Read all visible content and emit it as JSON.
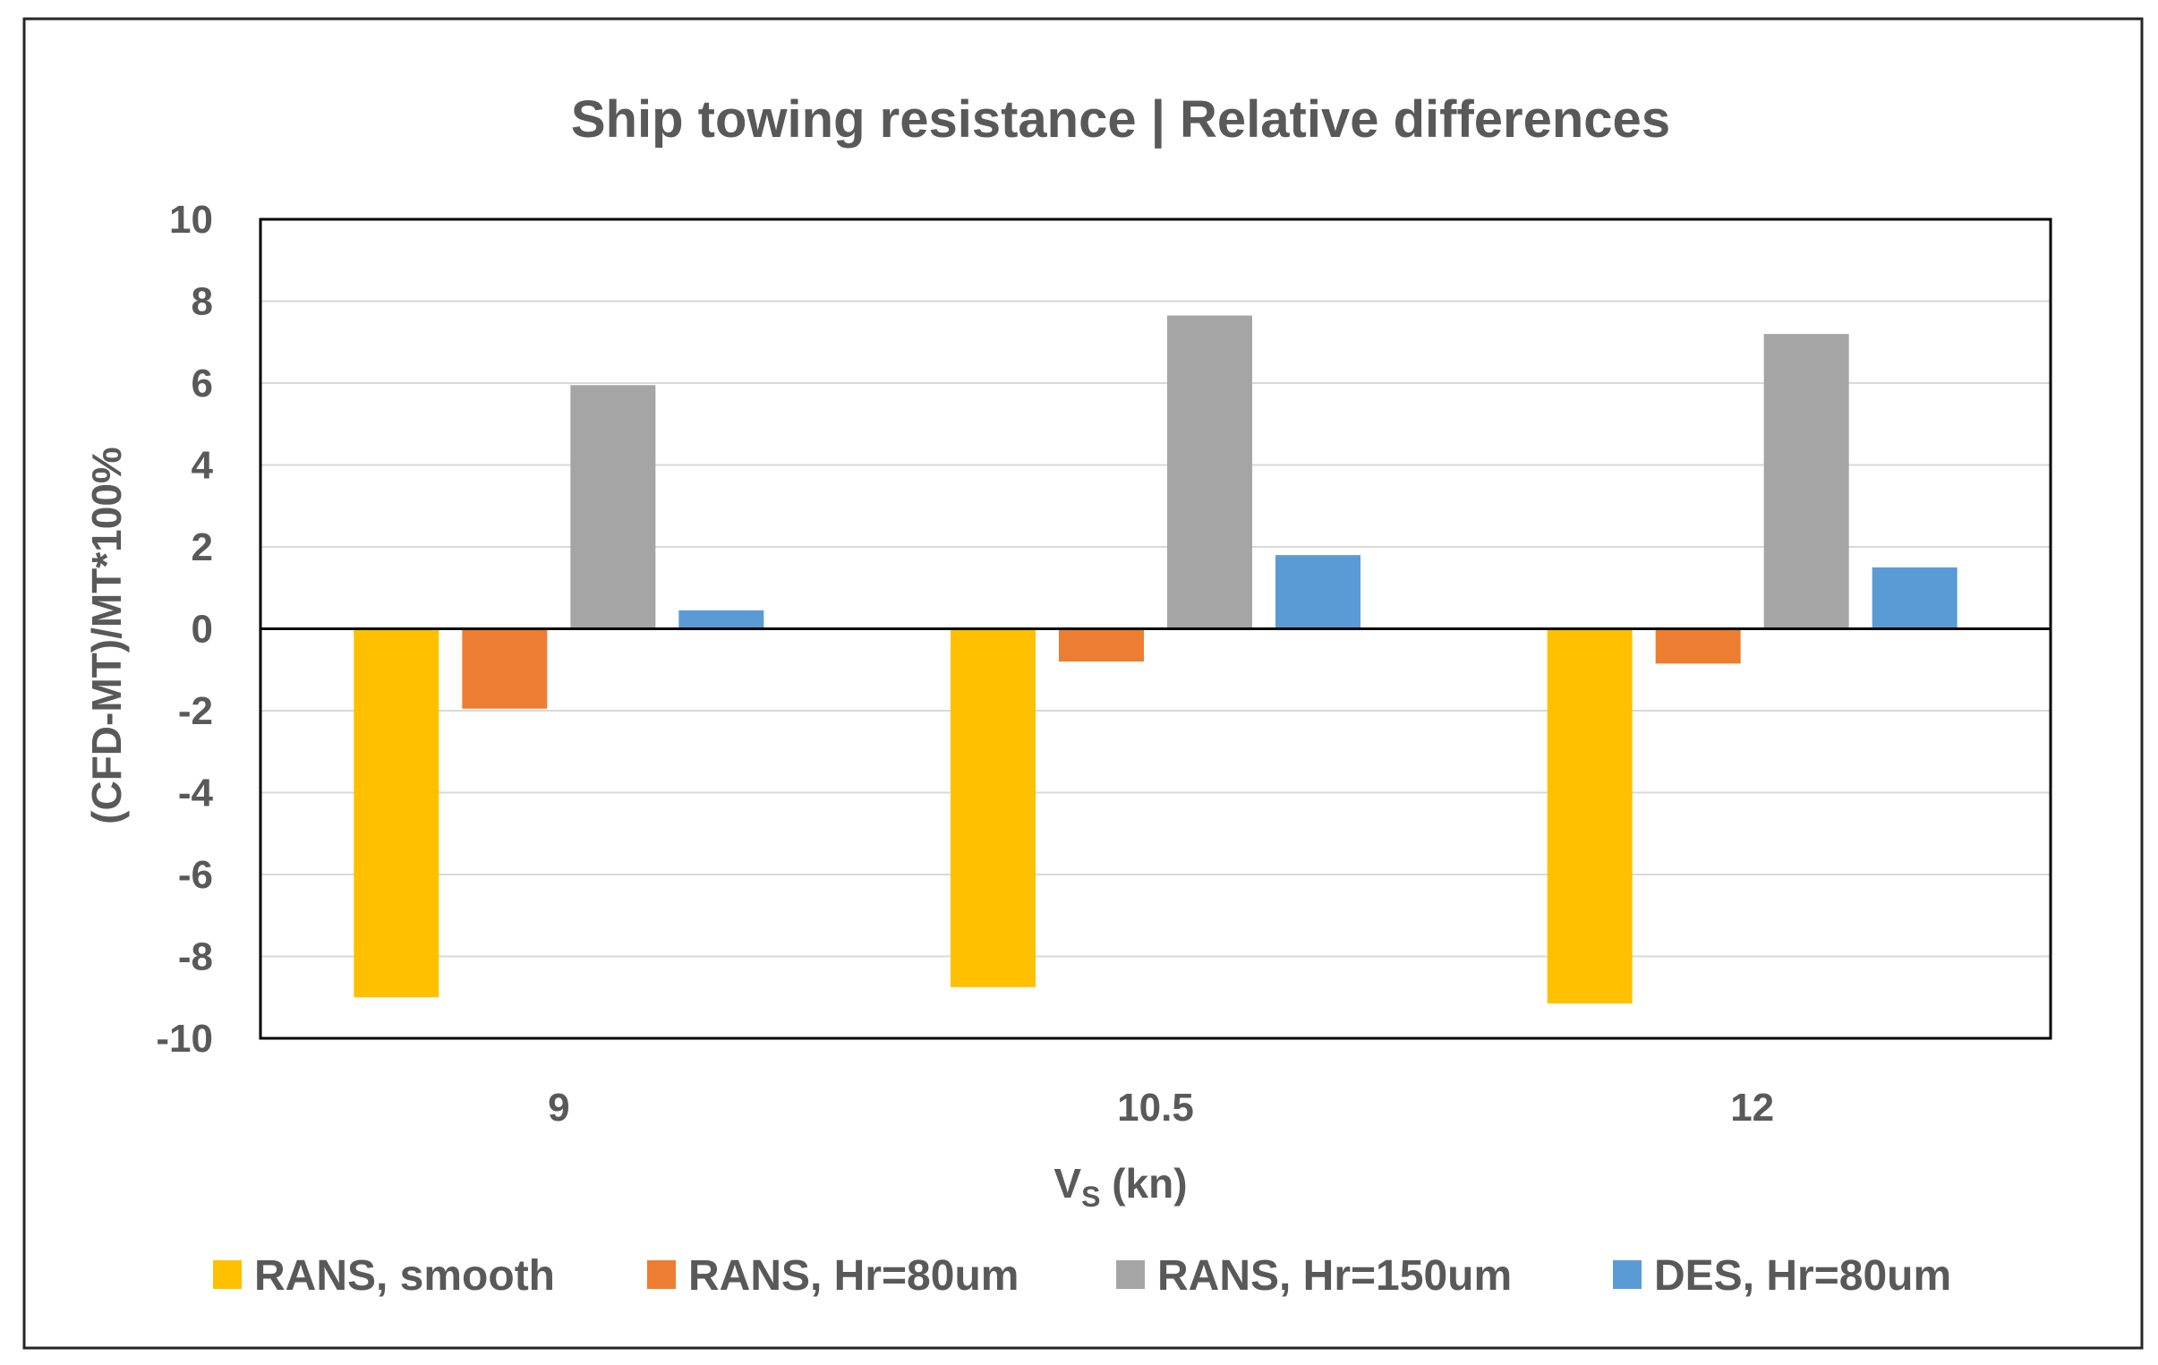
{
  "chart_data": {
    "type": "bar",
    "title": "Ship towing resistance | Relative differences",
    "xlabel": {
      "main": "V",
      "subscript": "S",
      "unit": " (kn)"
    },
    "ylabel": "(CFD-MT)/MT*100%",
    "categories": [
      "9",
      "10.5",
      "12"
    ],
    "ylim": [
      -10,
      10
    ],
    "yticks": [
      10,
      8,
      6,
      4,
      2,
      0,
      -2,
      -4,
      -6,
      -8,
      -10
    ],
    "grid": true,
    "legend_position": "bottom",
    "series": [
      {
        "name": "RANS, smooth",
        "color": "#FFC000",
        "values": [
          -9.0,
          -8.75,
          -9.15
        ]
      },
      {
        "name": "RANS, Hr=80um",
        "color": "#ED7D31",
        "values": [
          -1.95,
          -0.8,
          -0.85
        ]
      },
      {
        "name": "RANS, Hr=150um",
        "color": "#A5A5A5",
        "values": [
          5.95,
          7.65,
          7.2
        ]
      },
      {
        "name": "DES, Hr=80um",
        "color": "#5B9BD5",
        "values": [
          0.45,
          1.8,
          1.5
        ]
      }
    ]
  }
}
